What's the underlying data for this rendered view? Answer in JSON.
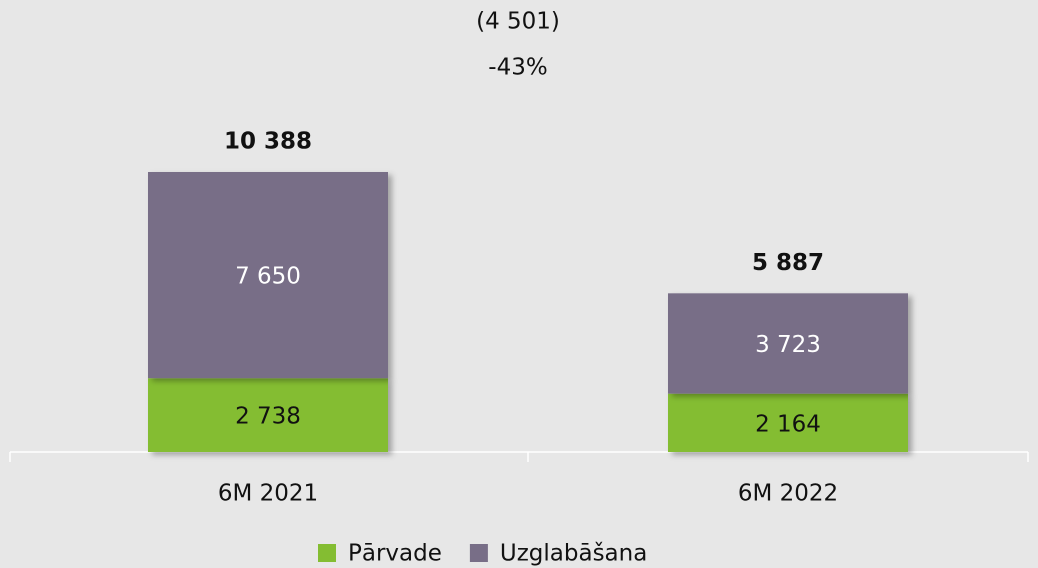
{
  "chart_data": {
    "type": "stacked-bar",
    "annotations": [
      "(4 501)",
      "-43%"
    ],
    "categories": [
      "6M 2021",
      "6M 2022"
    ],
    "series": [
      {
        "name": "Pārvade",
        "color": "#84bd32",
        "values": [
          2738,
          2164
        ],
        "value_labels": [
          "2 738",
          "2 164"
        ]
      },
      {
        "name": "Uzglabāšana",
        "color": "#786e87",
        "values": [
          7650,
          3723
        ],
        "value_labels": [
          "7 650",
          "3 723"
        ]
      }
    ],
    "totals": {
      "values": [
        10388,
        5887
      ],
      "labels": [
        "10 388",
        "5 887"
      ]
    },
    "legend": "bottom"
  }
}
